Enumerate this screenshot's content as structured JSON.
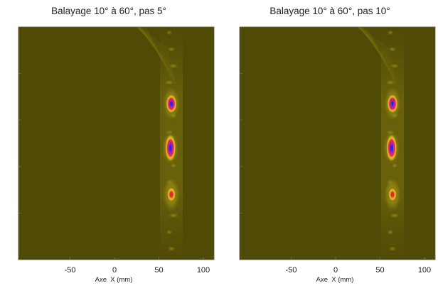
{
  "chart_data": [
    {
      "type": "heatmap",
      "title": "Balayage 10° à 60°, pas 5°",
      "xlabel": "Axe  X (mm)",
      "ylabel": "",
      "xlim": [
        -108,
        112
      ],
      "x_ticks": [
        -50,
        0,
        50,
        100
      ],
      "x_tick_labels": [
        "-50",
        "0",
        "50",
        "100"
      ],
      "y_ticks_count": 4,
      "colormap": {
        "background": "#4f4a06",
        "low": "#7a6f10",
        "mid": "#d6c21e",
        "high": "#e8e040",
        "peak_ring": "#e0207a",
        "peak_core": "#3a20c8"
      },
      "hotspots": [
        {
          "x_mm": 64,
          "row_frac": 0.33,
          "intensity": 1.0
        },
        {
          "x_mm": 63,
          "row_frac": 0.52,
          "intensity": 1.0
        },
        {
          "x_mm": 64,
          "row_frac": 0.72,
          "intensity": 0.8
        }
      ]
    },
    {
      "type": "heatmap",
      "title": "Balayage 10° à 60°, pas 10°",
      "xlabel": "Axe  X (mm)",
      "ylabel": "",
      "xlim": [
        -108,
        112
      ],
      "x_ticks": [
        -50,
        0,
        50,
        100
      ],
      "x_tick_labels": [
        "-50",
        "0",
        "50",
        "100"
      ],
      "y_ticks_count": 4,
      "colormap": {
        "background": "#4f4a06",
        "low": "#7a6f10",
        "mid": "#d6c21e",
        "high": "#e8e040",
        "peak_ring": "#e0207a",
        "peak_core": "#3a20c8"
      },
      "hotspots": [
        {
          "x_mm": 64,
          "row_frac": 0.33,
          "intensity": 1.0
        },
        {
          "x_mm": 63,
          "row_frac": 0.52,
          "intensity": 1.0
        },
        {
          "x_mm": 64,
          "row_frac": 0.72,
          "intensity": 0.75
        }
      ]
    }
  ]
}
